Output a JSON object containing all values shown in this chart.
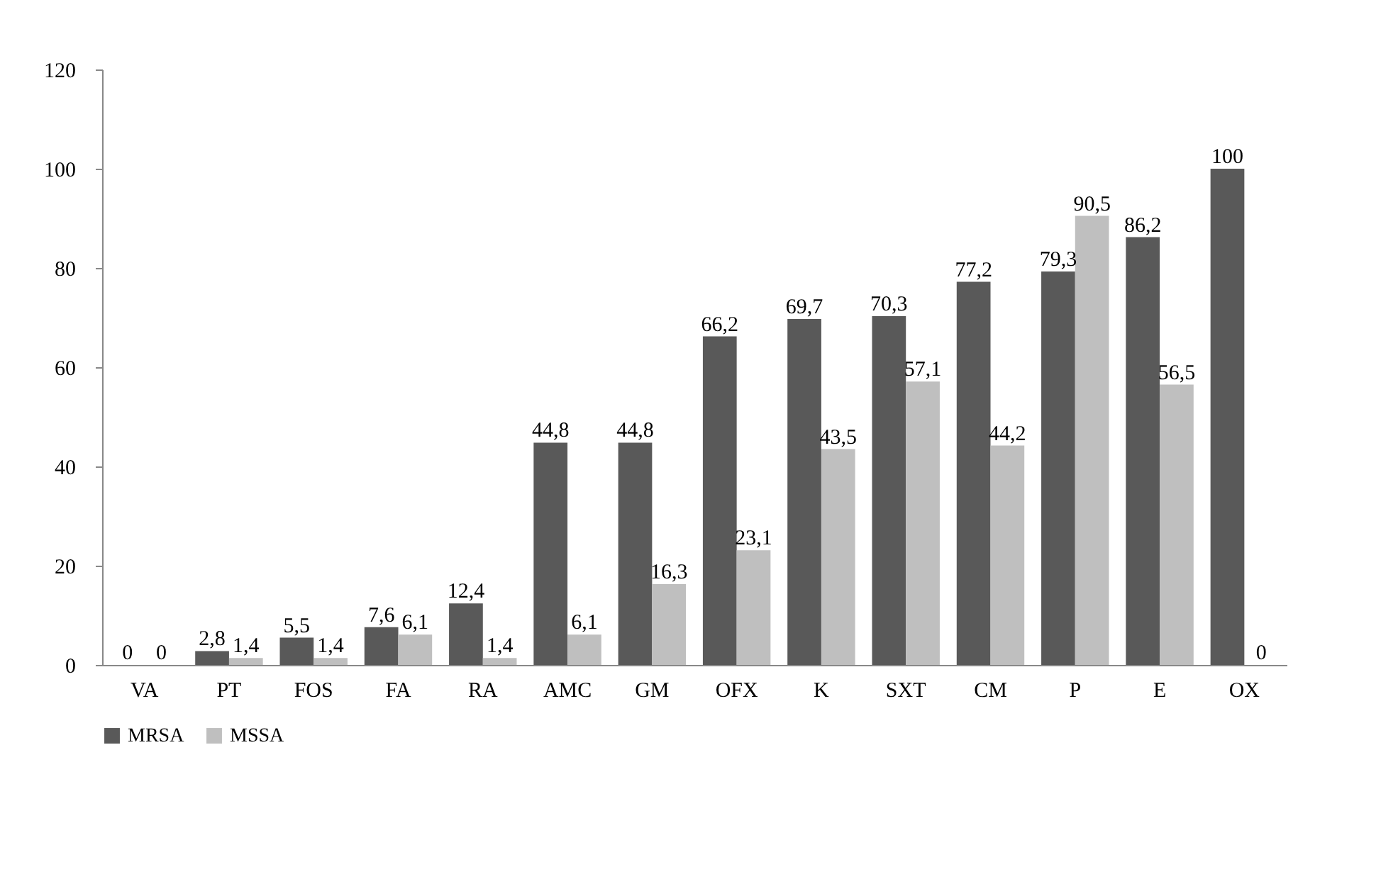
{
  "chart_data": {
    "type": "bar",
    "categories": [
      "VA",
      "PT",
      "FOS",
      "FA",
      "RA",
      "AMC",
      "GM",
      "OFX",
      "K",
      "SXT",
      "CM",
      "P",
      "E",
      "OX"
    ],
    "series": [
      {
        "name": "MRSA",
        "color": "#595959",
        "values": [
          0,
          2.8,
          5.5,
          7.6,
          12.4,
          44.8,
          44.8,
          66.2,
          69.7,
          70.3,
          77.2,
          79.3,
          86.2,
          100
        ],
        "value_labels": [
          "0",
          "2,8",
          "5,5",
          "7,6",
          "12,4",
          "44,8",
          "44,8",
          "66,2",
          "69,7",
          "70,3",
          "77,2",
          "79,3",
          "86,2",
          "100"
        ]
      },
      {
        "name": "MSSA",
        "color": "#bfbfbf",
        "values": [
          0,
          1.4,
          1.4,
          6.1,
          1.4,
          6.1,
          16.3,
          23.1,
          43.5,
          57.1,
          44.2,
          90.5,
          56.5,
          0
        ],
        "value_labels": [
          "0",
          "1,4",
          "1,4",
          "6,1",
          "1,4",
          "6,1",
          "16,3",
          "23,1",
          "43,5",
          "57,1",
          "44,2",
          "90,5",
          "56,5",
          "0"
        ]
      }
    ],
    "ylim": [
      0,
      120
    ],
    "yticks": [
      0,
      20,
      40,
      60,
      80,
      100,
      120
    ],
    "grid": false,
    "legend": "bottom"
  }
}
